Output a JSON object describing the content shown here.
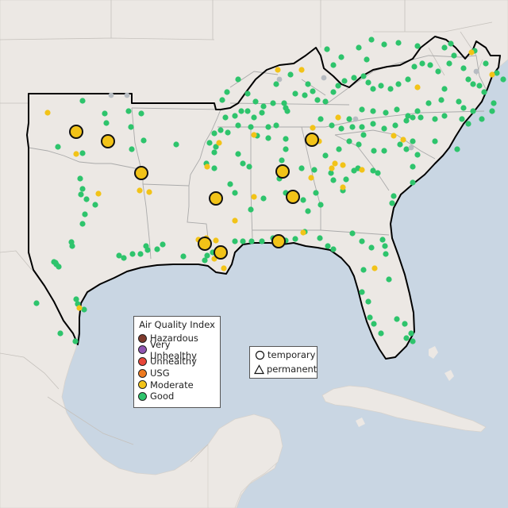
{
  "legend": {
    "title": "Air Quality Index",
    "items": [
      {
        "label": "Hazardous",
        "color": "#7e3a2c"
      },
      {
        "label": "Very Unhealthy",
        "color": "#8f55b2"
      },
      {
        "label": "Unhealthy",
        "color": "#e8463a"
      },
      {
        "label": "USG",
        "color": "#ee7a1f"
      },
      {
        "label": "Moderate",
        "color": "#f2c318"
      },
      {
        "label": "Good",
        "color": "#2ec46c"
      }
    ]
  },
  "shape_legend": {
    "temporary": "temporary",
    "permanent": "permanent"
  },
  "colors": {
    "water": "#c9d6e3",
    "land": "#ece8e4",
    "region_outline": "#000000",
    "no_data": "#b7bcc2"
  }
}
